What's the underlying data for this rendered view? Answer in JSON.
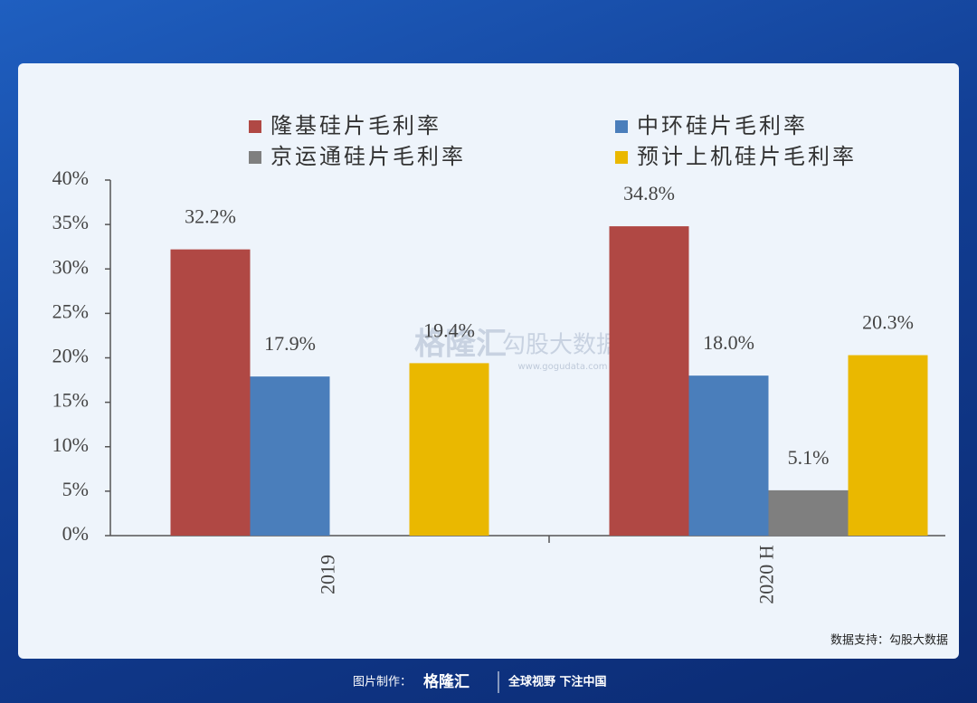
{
  "chart_data": {
    "type": "bar",
    "categories": [
      "2019",
      "2020 H"
    ],
    "series": [
      {
        "name": "隆基硅片毛利率",
        "color": "#b04844",
        "values": [
          32.2,
          34.8
        ],
        "value_labels": [
          "32.2%",
          "34.8%"
        ]
      },
      {
        "name": "中环硅片毛利率",
        "color": "#4a7ebb",
        "values": [
          17.9,
          18.0
        ],
        "value_labels": [
          "17.9%",
          "18.0%"
        ]
      },
      {
        "name": "京运通硅片毛利率",
        "color": "#7f7f7f",
        "values": [
          null,
          5.1
        ],
        "value_labels": [
          null,
          "5.1%"
        ]
      },
      {
        "name": "预计上机硅片毛利率",
        "color": "#eab800",
        "values": [
          19.4,
          20.3
        ],
        "value_labels": [
          "19.4%",
          "20.3%"
        ]
      }
    ],
    "ylim": [
      0,
      40
    ],
    "yticks": [
      {
        "value": 0,
        "label": "0%"
      },
      {
        "value": 5,
        "label": "5%"
      },
      {
        "value": 10,
        "label": "10%"
      },
      {
        "value": 15,
        "label": "15%"
      },
      {
        "value": 20,
        "label": "20%"
      },
      {
        "value": 25,
        "label": "25%"
      },
      {
        "value": 30,
        "label": "30%"
      },
      {
        "value": 35,
        "label": "35%"
      },
      {
        "value": 40,
        "label": "40%"
      }
    ],
    "grid": false,
    "source": "数据支持：勾股大数据"
  },
  "watermark": {
    "brand": "格隆汇",
    "name": "勾股大数据",
    "url": "www.gogudata.com"
  },
  "footer": {
    "made_by": "图片制作：",
    "brand": "格隆汇",
    "slogan": "全球视野 下注中国"
  }
}
